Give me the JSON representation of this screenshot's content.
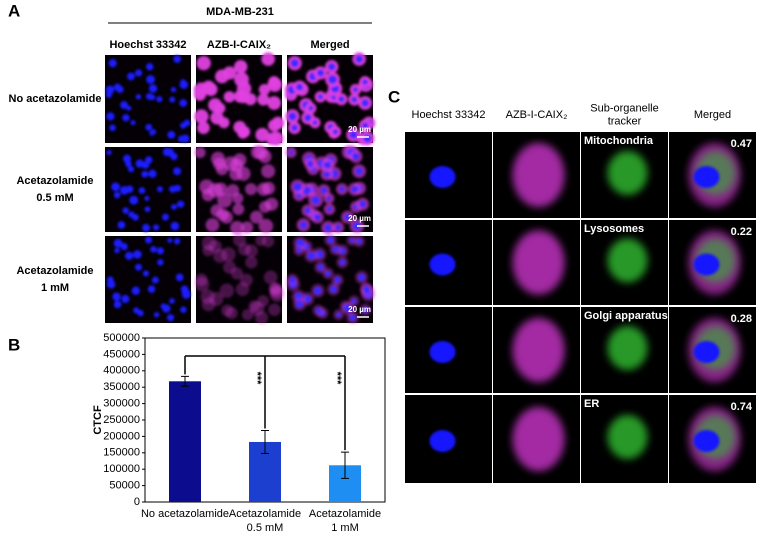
{
  "panel_a": {
    "label": "A",
    "title": "MDA-MB-231",
    "columns": [
      "Hoechst 33342",
      "AZB-I-CAIX₂",
      "Merged"
    ],
    "rows": [
      [
        "No acetazolamide"
      ],
      [
        "Acetazolamide",
        "0.5 mM"
      ],
      [
        "Acetazolamide",
        "1 mM"
      ]
    ],
    "scale_bar": "20 µm"
  },
  "chart_data": {
    "type": "bar",
    "panel_label": "B",
    "y_label": "CTCF",
    "categories": [
      [
        "No acetazolamide"
      ],
      [
        "Acetazolamide",
        "0.5 mM"
      ],
      [
        "Acetazolamide",
        "1 mM"
      ]
    ],
    "values": [
      368000,
      183000,
      112000
    ],
    "errors": [
      15000,
      35000,
      40000
    ],
    "colors": [
      "#0c0c8e",
      "#1d3fcf",
      "#1f8ef2"
    ],
    "ylim": [
      0,
      500000
    ],
    "yticks": [
      0,
      50000,
      100000,
      150000,
      200000,
      250000,
      300000,
      350000,
      400000,
      450000,
      500000
    ],
    "annotations": [
      "***",
      "***"
    ]
  },
  "panel_c": {
    "label": "C",
    "columns": [
      [
        "Hoechst 33342"
      ],
      [
        "AZB-I-CAIX₂"
      ],
      [
        "Sub-organelle",
        "tracker"
      ],
      [
        "Merged"
      ]
    ],
    "rows": [
      {
        "organelle": "Mitochondria",
        "coefficient": 0.47
      },
      {
        "organelle": "Lysosomes",
        "coefficient": 0.22
      },
      {
        "organelle": "Golgi apparatus",
        "coefficient": 0.28
      },
      {
        "organelle": "ER",
        "coefficient": 0.74
      }
    ]
  }
}
